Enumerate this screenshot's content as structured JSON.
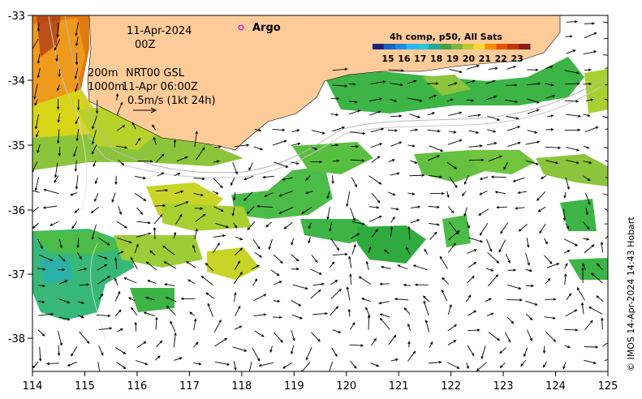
{
  "map": {
    "date_line1": "11-Apr-2024",
    "date_line2": "00Z",
    "depth_200": "200m",
    "depth_1000": "1000m",
    "product": "NRT00 GSL",
    "product_time": "11-Apr 06:00Z",
    "scale_text": "0.5m/s (1kt 24h)",
    "argo_label": "Argo",
    "credit": "© IMOS 14-Apr-2024 14:43 Hobart"
  },
  "colorbar": {
    "title": "4h comp, p50, All Sats",
    "ticks": [
      "15",
      "16",
      "17",
      "18",
      "19",
      "20",
      "21",
      "22",
      "23"
    ],
    "colors": [
      "#1a237e",
      "#1565c0",
      "#1e88e5",
      "#29b6f6",
      "#26c6da",
      "#26a69a",
      "#43a047",
      "#7cb342",
      "#c0ca33",
      "#fdd835",
      "#fb8c00",
      "#e65100",
      "#bf360c",
      "#8b1a1a"
    ]
  },
  "axes": {
    "x_ticks": [
      "114",
      "115",
      "116",
      "117",
      "118",
      "119",
      "120",
      "121",
      "122",
      "123",
      "124",
      "125"
    ],
    "y_ticks": [
      "-33",
      "-34",
      "-35",
      "-36",
      "-37",
      "-38"
    ]
  },
  "colors": {
    "land": "#ffcc99",
    "frame": "#000000"
  }
}
